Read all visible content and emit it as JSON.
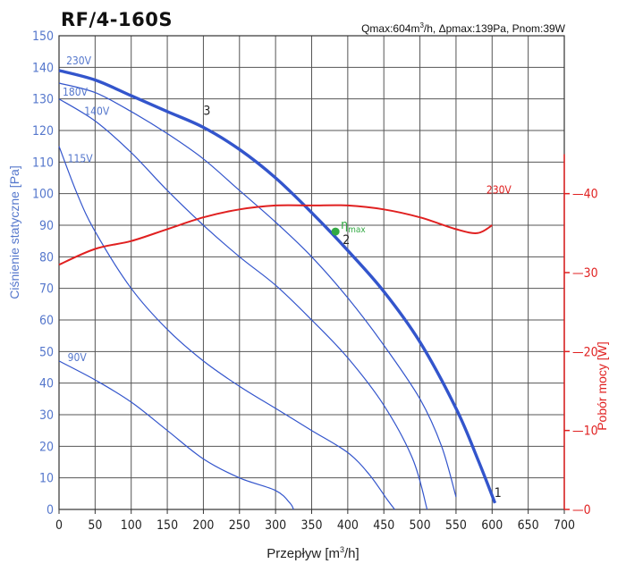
{
  "title": "RF/4-160S",
  "specs": {
    "qmax_prefix": "Qmax:604m",
    "qmax_exp": "3",
    "rest": "/h, Δpmax:139Pa, Pnom:39W"
  },
  "colors": {
    "pressure": "#3355cc",
    "power": "#e02020",
    "point": "#33aa44",
    "grid": "#555555",
    "left_axis_text": "#5577cc"
  },
  "chart_data": {
    "type": "line",
    "title": "RF/4-160S",
    "xlabel_prefix": "Przepływ [m",
    "xlabel_exp": "3",
    "xlabel_suffix": "/h]",
    "ylabel": "Ciśnienie statyczne [Pa]",
    "y2label": "Pobór mocy [W]",
    "xlim": [
      0,
      700
    ],
    "ylim": [
      0,
      150
    ],
    "y2lim": [
      0,
      60
    ],
    "x_ticks": [
      "0",
      "50",
      "100",
      "150",
      "200",
      "250",
      "300",
      "350",
      "400",
      "450",
      "500",
      "550",
      "600",
      "650",
      "700"
    ],
    "y_ticks": [
      "0",
      "10",
      "20",
      "30",
      "40",
      "50",
      "60",
      "70",
      "80",
      "90",
      "100",
      "110",
      "120",
      "130",
      "140",
      "150"
    ],
    "y2_ticks": [
      "0",
      "10",
      "20",
      "30",
      "40"
    ],
    "grid": true,
    "series": [
      {
        "name": "230V",
        "kind": "pressure",
        "bold": true,
        "points": [
          [
            0,
            139
          ],
          [
            50,
            136
          ],
          [
            100,
            131
          ],
          [
            150,
            126
          ],
          [
            200,
            121
          ],
          [
            250,
            114
          ],
          [
            300,
            105
          ],
          [
            350,
            94
          ],
          [
            400,
            82
          ],
          [
            450,
            69
          ],
          [
            500,
            53
          ],
          [
            550,
            32
          ],
          [
            580,
            16
          ],
          [
            604,
            2
          ]
        ]
      },
      {
        "name": "180V",
        "kind": "pressure",
        "bold": false,
        "points": [
          [
            0,
            135
          ],
          [
            50,
            132
          ],
          [
            100,
            126
          ],
          [
            150,
            119
          ],
          [
            200,
            111
          ],
          [
            250,
            101
          ],
          [
            300,
            91
          ],
          [
            350,
            80
          ],
          [
            400,
            67
          ],
          [
            450,
            52
          ],
          [
            500,
            35
          ],
          [
            530,
            20
          ],
          [
            550,
            4
          ]
        ]
      },
      {
        "name": "140V",
        "kind": "pressure",
        "bold": false,
        "points": [
          [
            0,
            130
          ],
          [
            50,
            123
          ],
          [
            100,
            113
          ],
          [
            150,
            101
          ],
          [
            200,
            90
          ],
          [
            250,
            80
          ],
          [
            300,
            71
          ],
          [
            350,
            60
          ],
          [
            400,
            48
          ],
          [
            450,
            33
          ],
          [
            490,
            16
          ],
          [
            510,
            0
          ]
        ]
      },
      {
        "name": "115V",
        "kind": "pressure",
        "bold": false,
        "points": [
          [
            0,
            115
          ],
          [
            25,
            100
          ],
          [
            50,
            88
          ],
          [
            100,
            70
          ],
          [
            150,
            57
          ],
          [
            200,
            47
          ],
          [
            250,
            39
          ],
          [
            300,
            32
          ],
          [
            350,
            25
          ],
          [
            400,
            18
          ],
          [
            430,
            11
          ],
          [
            455,
            3
          ],
          [
            465,
            0
          ]
        ]
      },
      {
        "name": "90V",
        "kind": "pressure",
        "bold": false,
        "points": [
          [
            0,
            47
          ],
          [
            50,
            41
          ],
          [
            100,
            34
          ],
          [
            150,
            25
          ],
          [
            200,
            16
          ],
          [
            250,
            10
          ],
          [
            300,
            6
          ],
          [
            320,
            2
          ],
          [
            325,
            0
          ]
        ]
      },
      {
        "name": "230V",
        "kind": "power",
        "points": [
          [
            0,
            31
          ],
          [
            50,
            33
          ],
          [
            100,
            34
          ],
          [
            150,
            35.5
          ],
          [
            200,
            37
          ],
          [
            250,
            38
          ],
          [
            300,
            38.5
          ],
          [
            350,
            38.5
          ],
          [
            400,
            38.5
          ],
          [
            450,
            38
          ],
          [
            500,
            37
          ],
          [
            550,
            35.5
          ],
          [
            580,
            35
          ],
          [
            600,
            36
          ]
        ]
      }
    ],
    "labels": [
      {
        "text": "230V",
        "x": 10,
        "y": 141,
        "kind": "pressure"
      },
      {
        "text": "180V",
        "x": 5,
        "y": 131,
        "kind": "pressure"
      },
      {
        "text": "140V",
        "x": 35,
        "y": 125,
        "kind": "pressure"
      },
      {
        "text": "115V",
        "x": 12,
        "y": 110,
        "kind": "pressure"
      },
      {
        "text": "90V",
        "x": 12,
        "y": 47,
        "kind": "pressure"
      },
      {
        "text": "230V",
        "x": 592,
        "y": 40,
        "kind": "power"
      }
    ],
    "annotations": [
      {
        "text": "3",
        "x": 200,
        "y": 125
      },
      {
        "text": "2",
        "x": 393,
        "y": 84
      },
      {
        "text": "1",
        "x": 603,
        "y": 4
      }
    ],
    "point": {
      "label_main": "η",
      "label_sub": "max",
      "x": 383,
      "y": 88
    }
  }
}
